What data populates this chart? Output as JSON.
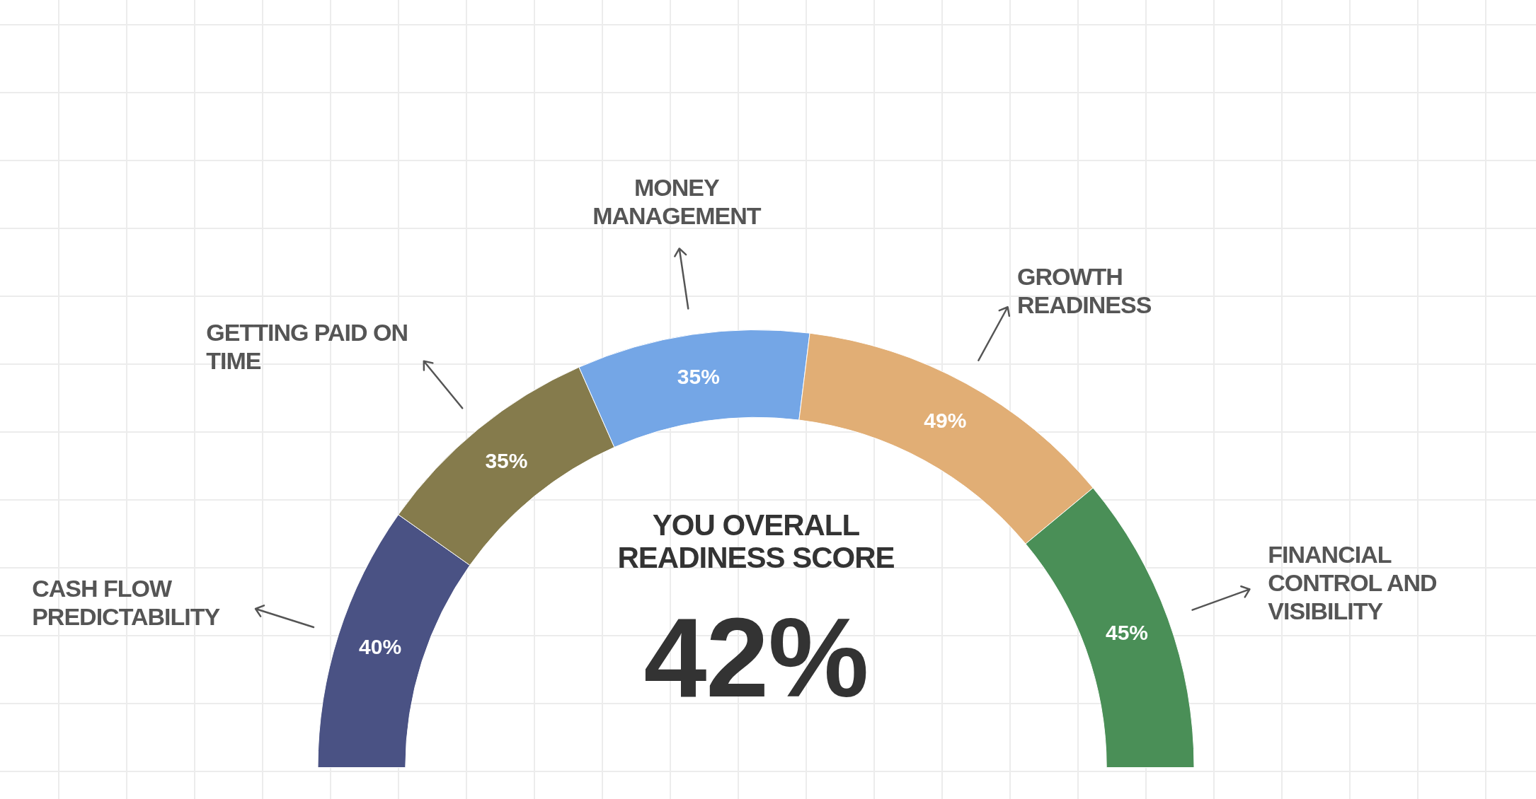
{
  "chart_data": {
    "type": "other",
    "categories": [
      "CASH FLOW PREDICTABILITY",
      "GETTING PAID ON TIME",
      "MONEY MANAGEMENT",
      "GROWTH READINESS",
      "FINANCIAL CONTROL AND VISIBILITY"
    ],
    "values": [
      40,
      35,
      35,
      49,
      45
    ],
    "value_labels": [
      "40%",
      "35%",
      "35%",
      "49%",
      "45%"
    ],
    "colors": [
      "#4a5284",
      "#857b4c",
      "#74a6e6",
      "#e1ae75",
      "#4a8f57"
    ],
    "legend": false,
    "annotations": [
      "YOU OVERALL READINESS SCORE",
      "42%"
    ]
  }
}
